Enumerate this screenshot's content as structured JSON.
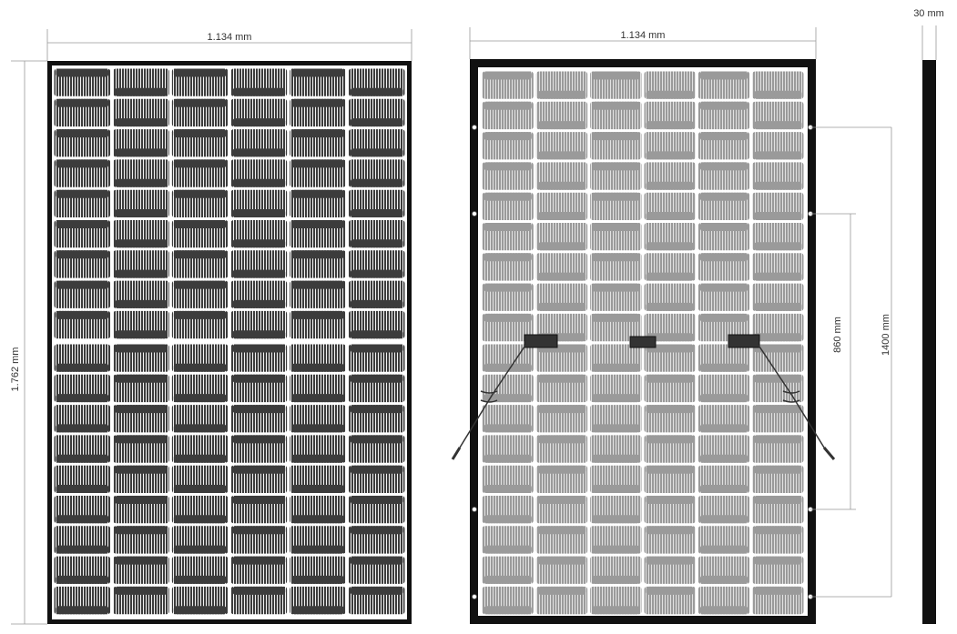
{
  "dimensions": {
    "front_width": "1.134 mm",
    "back_width": "1.134 mm",
    "height": "1.762 mm",
    "depth": "30 mm",
    "mount_inner": "860 mm",
    "mount_outer": "1400 mm"
  }
}
